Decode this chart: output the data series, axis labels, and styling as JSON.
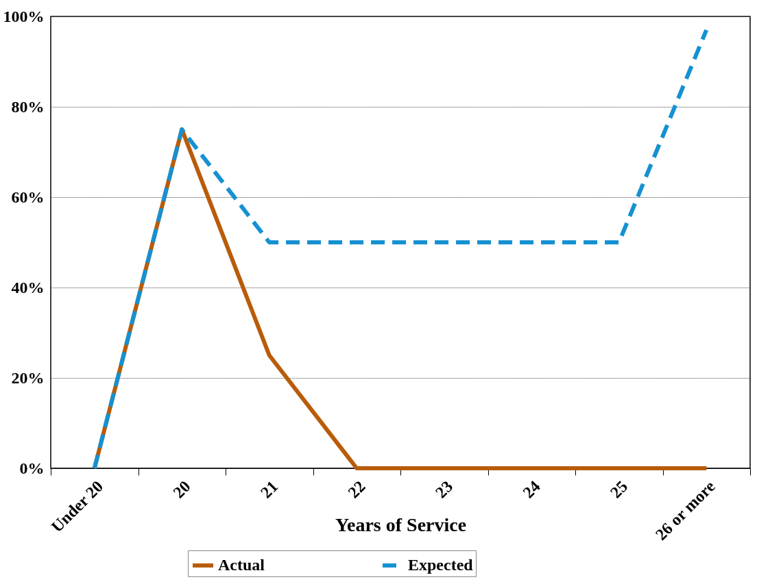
{
  "chart_data": {
    "type": "line",
    "xlabel": "Years of Service",
    "categories": [
      "Under 20",
      "20",
      "21",
      "22",
      "23",
      "24",
      "25",
      "26 or more"
    ],
    "series": [
      {
        "name": "Actual",
        "color": "#b85c0a",
        "line_style": "solid",
        "values": [
          0,
          75,
          25,
          0,
          0,
          0,
          0,
          0
        ]
      },
      {
        "name": "Expected",
        "color": "#1591d2",
        "line_style": "dashed",
        "values": [
          0,
          75,
          50,
          50,
          50,
          50,
          50,
          97
        ]
      }
    ],
    "ylim": [
      0,
      100
    ],
    "yticks": [
      {
        "value": 0,
        "label": "0%"
      },
      {
        "value": 20,
        "label": "20%"
      },
      {
        "value": 40,
        "label": "40%"
      },
      {
        "value": 60,
        "label": "60%"
      },
      {
        "value": 80,
        "label": "80%"
      },
      {
        "value": 100,
        "label": "100%"
      }
    ],
    "grid": "y",
    "legend": "bottom"
  }
}
